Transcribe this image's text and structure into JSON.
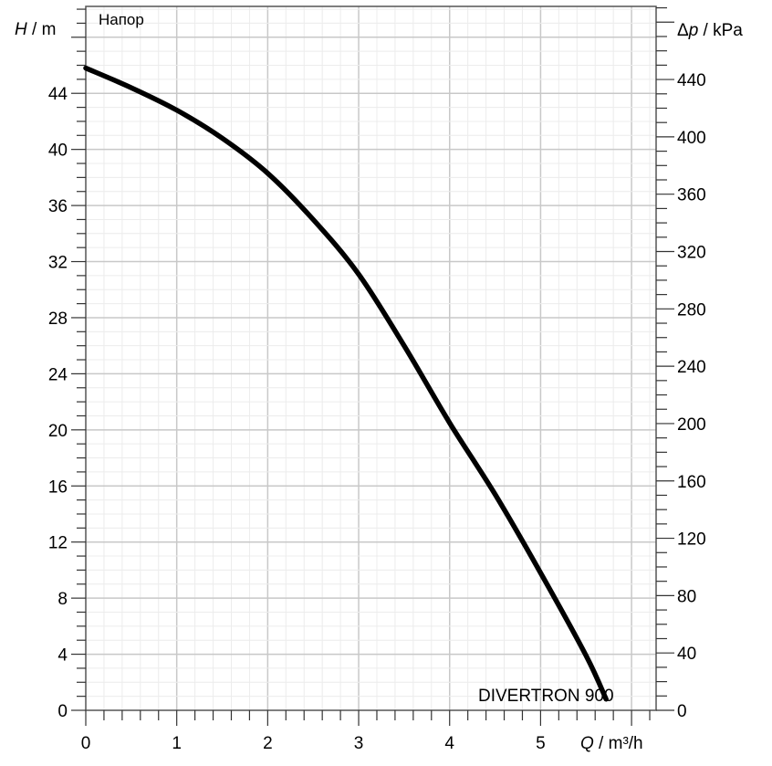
{
  "chart_data": {
    "type": "line",
    "title": "Напор",
    "xlabel": "Q / m³/h",
    "xlabel_var": "Q",
    "xlabel_unit": " / m³/h",
    "ylabel_var": "H",
    "ylabel_unit": " / m",
    "y2label_var": "Δp",
    "y2label_unit": " / kPa",
    "xlim": [
      0,
      6.27
    ],
    "ylim": [
      0,
      50.2
    ],
    "y2lim": [
      0,
      491
    ],
    "x_ticks": [
      0,
      1,
      2,
      3,
      4,
      5
    ],
    "y_ticks": [
      0,
      4,
      8,
      12,
      16,
      20,
      24,
      28,
      32,
      36,
      40,
      44
    ],
    "y2_ticks": [
      0,
      40,
      80,
      120,
      160,
      200,
      240,
      280,
      320,
      360,
      400,
      440
    ],
    "grid": true,
    "series": [
      {
        "name": "DIVERTRON 900",
        "color": "#000000",
        "x": [
          0,
          0.5,
          1,
          1.5,
          2,
          2.5,
          3,
          3.5,
          4,
          4.5,
          5,
          5.5,
          5.72
        ],
        "y": [
          45.8,
          44.4,
          42.8,
          40.8,
          38.3,
          35.0,
          31.1,
          26.0,
          20.5,
          15.4,
          9.8,
          3.9,
          0.8
        ]
      }
    ]
  }
}
